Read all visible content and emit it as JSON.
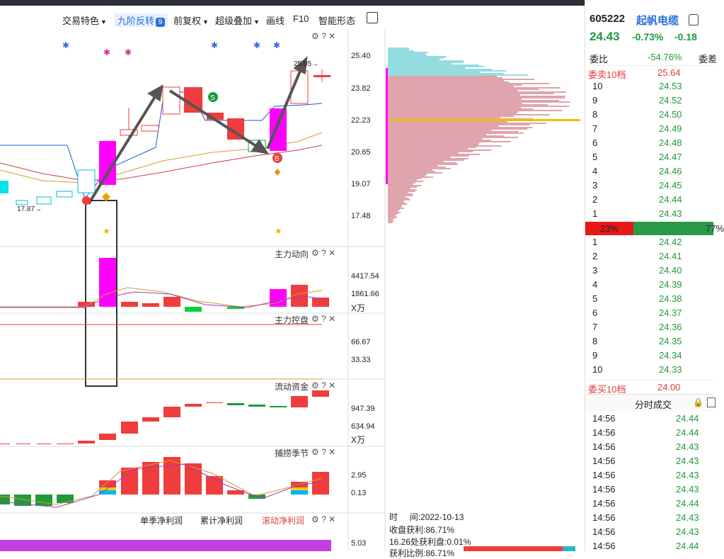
{
  "toolbar": {
    "items": [
      "交易特色",
      "九阶反转",
      "前复权",
      "超级叠加",
      "画线",
      "F10",
      "智能形态"
    ],
    "badge": "9"
  },
  "main_chart": {
    "y_ticks": [
      "25.40",
      "23.82",
      "22.23",
      "20.65",
      "19.07",
      "17.48"
    ],
    "high_label": "25.05→",
    "low_label": "17.87→",
    "sell_marker": "S",
    "buy_marker": "B"
  },
  "panels": {
    "zhuli_dongxiang": {
      "title": "主力动向",
      "ticks": [
        "4417.54",
        "1861.66"
      ],
      "unit": "X万"
    },
    "zhuli_kongpan": {
      "title": "主力控盘",
      "ticks": [
        "66.67",
        "33.33"
      ]
    },
    "liudong_zijin": {
      "title": "流动资金",
      "ticks": [
        "947.39",
        "634.94"
      ],
      "unit": "X万"
    },
    "bulao_jijie": {
      "title": "捕捞季节",
      "ticks": [
        "2.95",
        "0.13"
      ]
    },
    "profit": {
      "tabs": [
        "单季净利润",
        "累计净利润",
        "滚动净利润"
      ],
      "tick": "5.03"
    }
  },
  "chip_info": {
    "time_label": "时",
    "time_value": "间:2022-10-13",
    "profit_ratio": "收盘获利:86.71%",
    "profit_at": "16.26处获利盘:0.01%",
    "partial": "获利比例:86.71%"
  },
  "quote": {
    "code": "605222",
    "name": "起帆电缆",
    "price": "24.43",
    "change_pct": "-0.73%",
    "change": "-0.18",
    "weibi_label": "委比",
    "weibi_value": "-54.76%",
    "weicha_label": "委差",
    "sell_label": "委卖10档",
    "sell_total": "25.64",
    "asks": [
      {
        "lvl": "10",
        "px": "24.53"
      },
      {
        "lvl": "9",
        "px": "24.52"
      },
      {
        "lvl": "8",
        "px": "24.50"
      },
      {
        "lvl": "7",
        "px": "24.49"
      },
      {
        "lvl": "6",
        "px": "24.48"
      },
      {
        "lvl": "5",
        "px": "24.47"
      },
      {
        "lvl": "4",
        "px": "24.46"
      },
      {
        "lvl": "3",
        "px": "24.45"
      },
      {
        "lvl": "2",
        "px": "24.44"
      },
      {
        "lvl": "1",
        "px": "24.43"
      }
    ],
    "ratio_red": "23%",
    "ratio_green": "77%",
    "bids": [
      {
        "lvl": "1",
        "px": "24.42"
      },
      {
        "lvl": "2",
        "px": "24.41"
      },
      {
        "lvl": "3",
        "px": "24.40"
      },
      {
        "lvl": "4",
        "px": "24.39"
      },
      {
        "lvl": "5",
        "px": "24.38"
      },
      {
        "lvl": "6",
        "px": "24.37"
      },
      {
        "lvl": "7",
        "px": "24.36"
      },
      {
        "lvl": "8",
        "px": "24.35"
      },
      {
        "lvl": "9",
        "px": "24.34"
      },
      {
        "lvl": "10",
        "px": "24.33"
      }
    ],
    "buy_label": "委买10档",
    "buy_total": "24.00",
    "trades_title": "分时成交",
    "trades": [
      {
        "t": "14:56",
        "p": "24.44"
      },
      {
        "t": "14:56",
        "p": "24.44"
      },
      {
        "t": "14:56",
        "p": "24.43"
      },
      {
        "t": "14:56",
        "p": "24.43"
      },
      {
        "t": "14:56",
        "p": "24.43"
      },
      {
        "t": "14:56",
        "p": "24.43"
      },
      {
        "t": "14:56",
        "p": "24.44"
      },
      {
        "t": "14:56",
        "p": "24.43"
      },
      {
        "t": "14:56",
        "p": "24.43"
      },
      {
        "t": "14:56",
        "p": "24.44"
      }
    ]
  },
  "colors": {
    "up": "#f03c3c",
    "down": "#1e9a3c",
    "magenta": "#ff00ff",
    "accent": "#2a6fdb"
  }
}
